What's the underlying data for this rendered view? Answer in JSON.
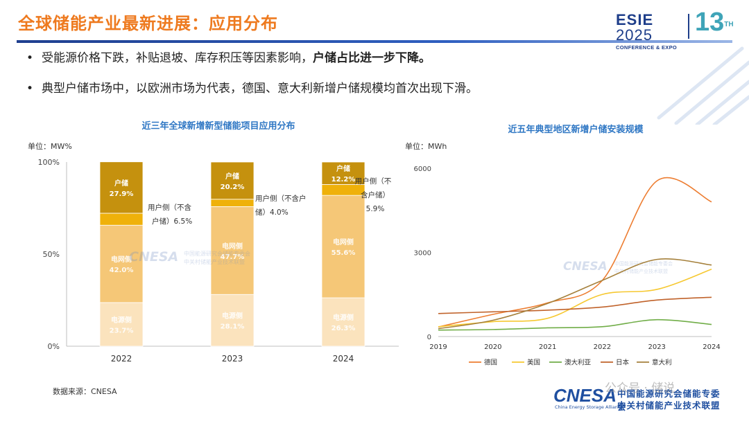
{
  "page": {
    "title": "全球储能产业最新进展：应用分布",
    "bullets": [
      {
        "text": "受能源价格下跌，补贴退坡、库存积压等因素影响，",
        "strong": "户储占比进一步下降。"
      },
      {
        "text": "典型户储市场中，以欧洲市场为代表，德国、意大利新增户储规模均首次出现下滑。",
        "strong": ""
      }
    ],
    "source": "数据来源：CNESA",
    "logo": {
      "esie_name": "ESIE",
      "esie_year": "2025",
      "esie_sub": "CONFERENCE & EXPO",
      "edition": "13",
      "edition_sup": "TH"
    },
    "footer_logo": {
      "name": "CNESA",
      "sub": "China Energy Storage Alliance",
      "cn_line1": "中关村储能产业技术联盟",
      "cn_line0": "中国能源研究会储能专委会"
    },
    "watermark_text": "公众号 · 储说",
    "accent_color": "#ee7a1f",
    "title_color": "#2f77c4"
  },
  "chart_data": [
    {
      "type": "bar",
      "stacked": true,
      "title": "近三年全球新增新型储能项目应用分布",
      "unit": "单位：MW%",
      "categories": [
        "2022",
        "2023",
        "2024"
      ],
      "ylim": [
        0,
        100
      ],
      "yticks": [
        "0%",
        "50%",
        "100%"
      ],
      "series": [
        {
          "name": "电源侧",
          "values": [
            23.7,
            28.1,
            26.3
          ],
          "color": "#fbe3bd"
        },
        {
          "name": "电网侧",
          "values": [
            42.0,
            47.7,
            55.6
          ],
          "color": "#f5c777"
        },
        {
          "name": "用户侧（不含户储）",
          "values": [
            6.5,
            4.0,
            5.9
          ],
          "color": "#efb10a"
        },
        {
          "name": "户储",
          "values": [
            27.9,
            20.2,
            12.2
          ],
          "color": "#c5910e"
        }
      ],
      "labels": {
        "2022": {
          "户储": [
            "户储",
            "27.9%"
          ],
          "电网侧": [
            "电网侧",
            "42.0%"
          ],
          "电源侧": [
            "电源侧",
            "23.7%"
          ]
        },
        "2023": {
          "户储": [
            "户储",
            "20.2%"
          ],
          "电网侧": [
            "电网侧",
            "47.7%"
          ],
          "电源侧": [
            "电源侧",
            "28.1%"
          ]
        },
        "2024": {
          "户储": [
            "户储",
            "12.2%"
          ],
          "电网侧": [
            "电网侧",
            "55.6%"
          ],
          "电源侧": [
            "电源侧",
            "26.3%"
          ]
        }
      },
      "callouts": [
        {
          "year": "2022",
          "lines": [
            "用户侧（不含",
            "户储）6.5%"
          ]
        },
        {
          "year": "2023",
          "lines": [
            "用户侧（不含户",
            "储）4.0%"
          ]
        },
        {
          "year": "2024",
          "lines": [
            "用户侧（不",
            "含户储）",
            "5.9%"
          ]
        }
      ],
      "watermark": {
        "name": "CNESA",
        "cn1": "中国能源研究会储能专委会",
        "cn2": "中关村储能产业技术联盟"
      }
    },
    {
      "type": "line",
      "title": "近五年典型地区新增户储安装规模",
      "unit": "单位：MWh",
      "x": [
        "2019",
        "2020",
        "2021",
        "2022",
        "2023",
        "2024"
      ],
      "ylim": [
        0,
        6000
      ],
      "yticks": [
        "0",
        "3000",
        "6000"
      ],
      "legend_position": "bottom",
      "series": [
        {
          "name": "德国",
          "color": "#ed7d31",
          "values": [
            340,
            790,
            1200,
            2000,
            5550,
            4800
          ]
        },
        {
          "name": "美国",
          "color": "#f6c830",
          "values": [
            350,
            530,
            650,
            1500,
            1680,
            2400
          ]
        },
        {
          "name": "澳大利亚",
          "color": "#70ad47",
          "values": [
            230,
            250,
            310,
            350,
            600,
            430
          ]
        },
        {
          "name": "日本",
          "color": "#c0622a",
          "values": [
            820,
            880,
            940,
            1050,
            1300,
            1400
          ]
        },
        {
          "name": "意大利",
          "color": "#a5803b",
          "values": [
            280,
            580,
            1180,
            2000,
            2750,
            2550
          ]
        }
      ],
      "watermark": {
        "name": "CNESA",
        "cn1": "中国能源研究会储能专委会",
        "cn2": "中关村储能产业技术联盟"
      }
    }
  ]
}
